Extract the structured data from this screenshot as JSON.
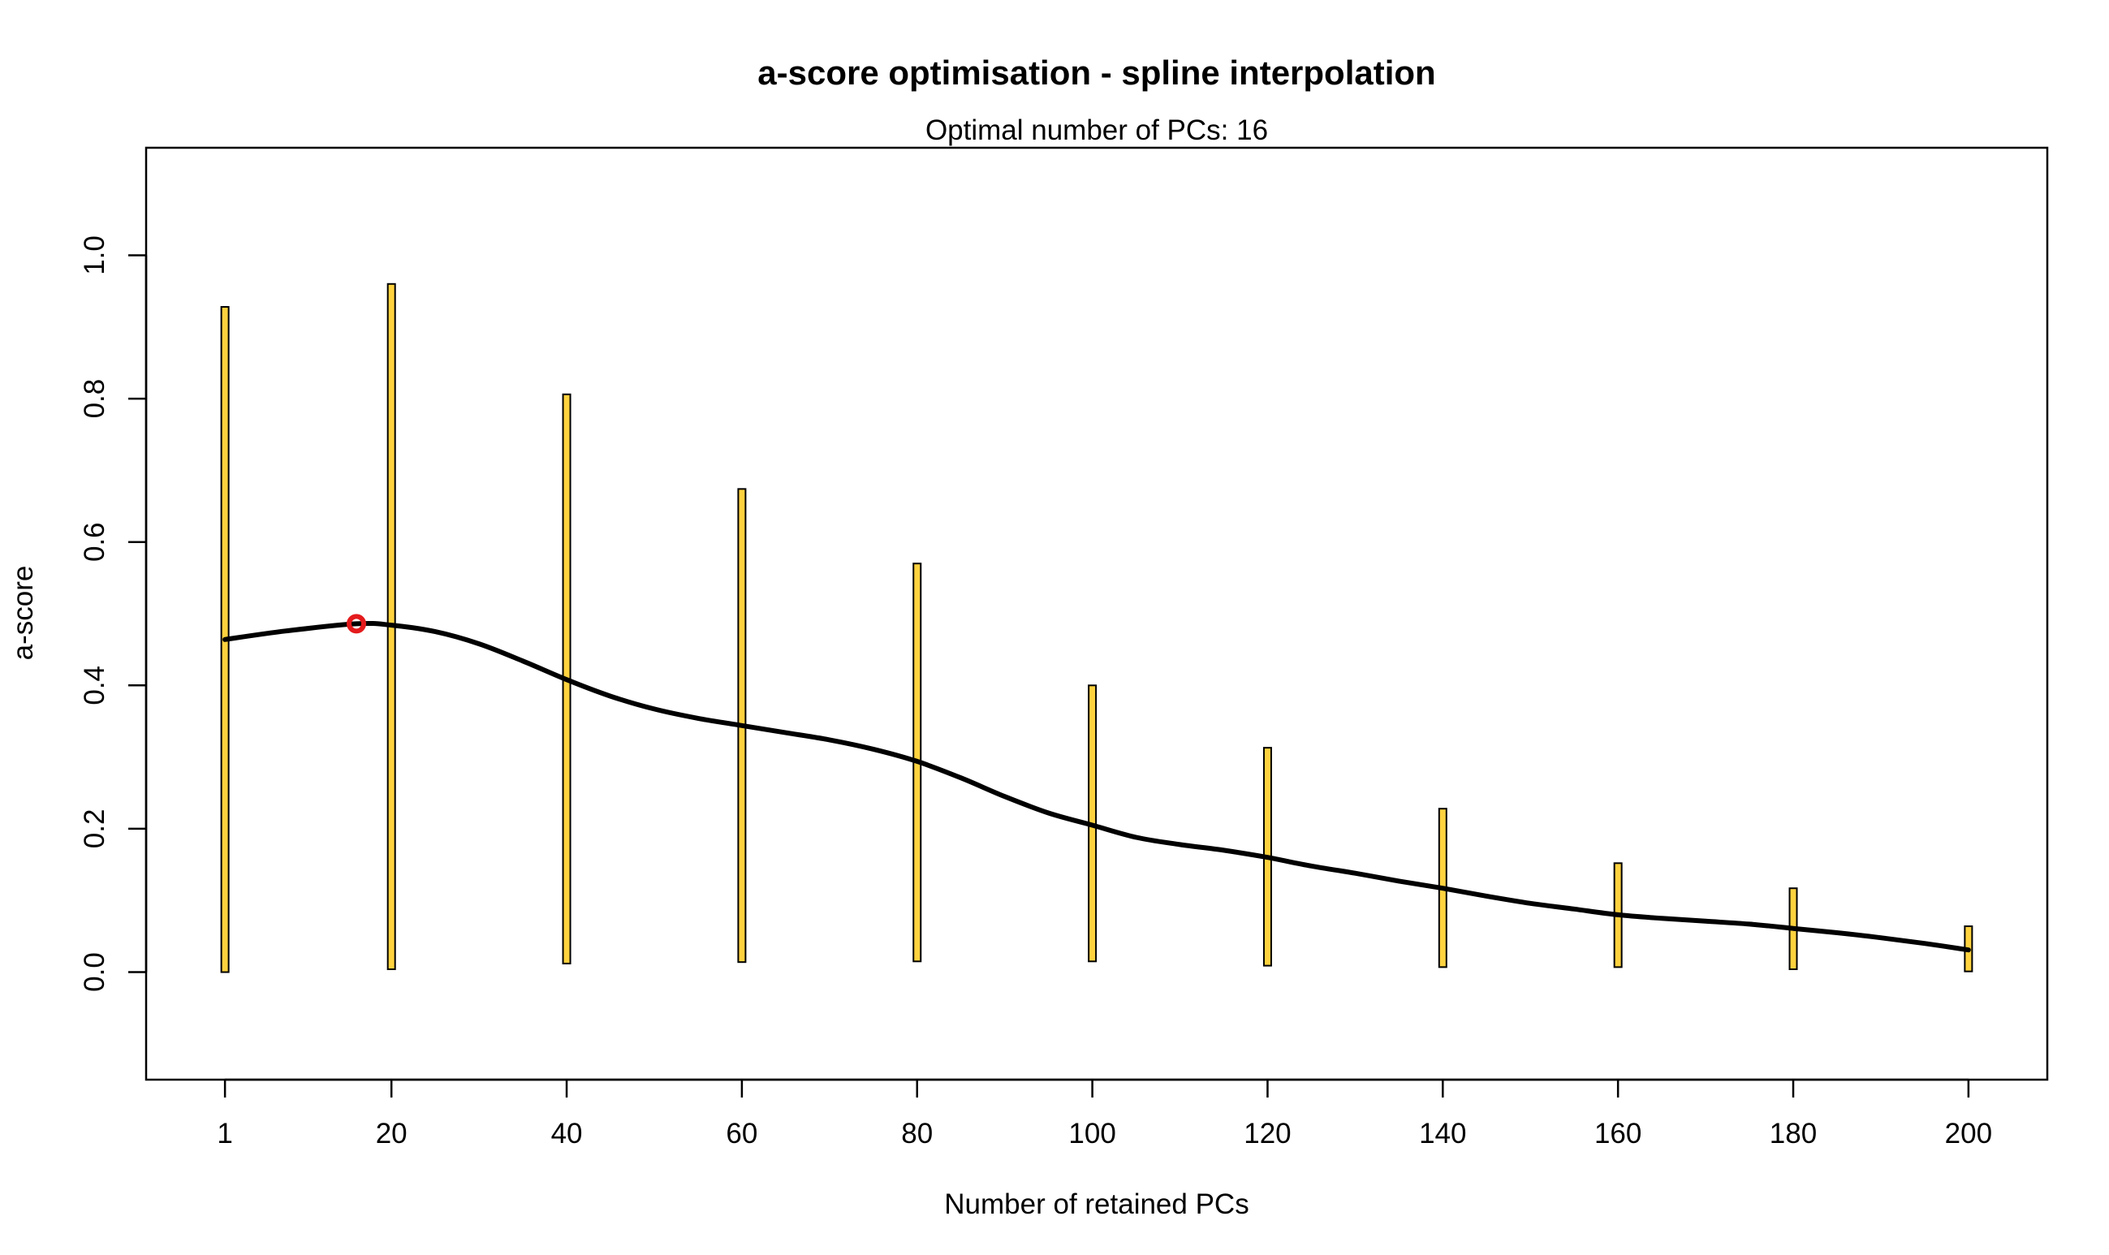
{
  "chart_data": {
    "type": "bar",
    "title": "a-score optimisation - spline interpolation",
    "subtitle": "Optimal number of PCs: 16",
    "xlabel": "Number of retained PCs",
    "ylabel": "a-score",
    "xlim": [
      -8,
      209
    ],
    "ylim": [
      -0.15,
      1.15
    ],
    "x_ticks": [
      1,
      20,
      40,
      60,
      80,
      100,
      120,
      140,
      160,
      180,
      200
    ],
    "x_tick_labels": [
      "1",
      "20",
      "40",
      "60",
      "80",
      "100",
      "120",
      "140",
      "160",
      "180",
      "200"
    ],
    "y_ticks": [
      0.0,
      0.2,
      0.4,
      0.6,
      0.8,
      1.0
    ],
    "y_tick_labels": [
      "0.0",
      "0.2",
      "0.4",
      "0.6",
      "0.8",
      "1.0"
    ],
    "grid": false,
    "bars": [
      {
        "x": 1,
        "low": 0.0,
        "high": 0.928
      },
      {
        "x": 20,
        "low": 0.004,
        "high": 0.96
      },
      {
        "x": 40,
        "low": 0.012,
        "high": 0.806
      },
      {
        "x": 60,
        "low": 0.014,
        "high": 0.674
      },
      {
        "x": 80,
        "low": 0.015,
        "high": 0.57
      },
      {
        "x": 100,
        "low": 0.015,
        "high": 0.4
      },
      {
        "x": 120,
        "low": 0.009,
        "high": 0.313
      },
      {
        "x": 140,
        "low": 0.007,
        "high": 0.228
      },
      {
        "x": 160,
        "low": 0.007,
        "high": 0.152
      },
      {
        "x": 180,
        "low": 0.004,
        "high": 0.117
      },
      {
        "x": 200,
        "low": 0.001,
        "high": 0.064
      }
    ],
    "spline": {
      "x": [
        1,
        8,
        16,
        20,
        25,
        30,
        35,
        40,
        45,
        50,
        55,
        60,
        65,
        70,
        75,
        80,
        85,
        90,
        95,
        100,
        105,
        110,
        115,
        120,
        125,
        130,
        135,
        140,
        145,
        150,
        155,
        160,
        165,
        170,
        175,
        180,
        185,
        190,
        195,
        200
      ],
      "y": [
        0.464,
        0.476,
        0.486,
        0.484,
        0.475,
        0.458,
        0.434,
        0.408,
        0.385,
        0.367,
        0.354,
        0.344,
        0.334,
        0.324,
        0.311,
        0.294,
        0.271,
        0.245,
        0.222,
        0.205,
        0.188,
        0.178,
        0.17,
        0.16,
        0.148,
        0.138,
        0.127,
        0.117,
        0.106,
        0.096,
        0.088,
        0.08,
        0.075,
        0.071,
        0.067,
        0.061,
        0.055,
        0.048,
        0.04,
        0.031
      ]
    },
    "optimal_point": {
      "x": 16,
      "y": 0.486
    },
    "colors": {
      "bar_fill": "#FFD23F",
      "bar_stroke": "#000000",
      "spline": "#000000",
      "optimal_point": "#E41A1C",
      "axis": "#000000"
    }
  }
}
